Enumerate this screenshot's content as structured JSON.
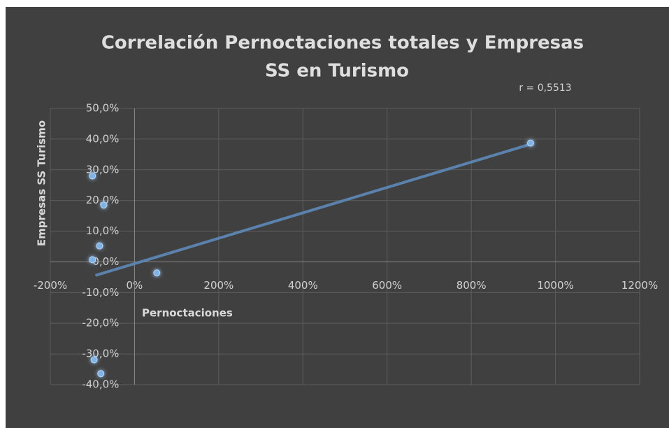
{
  "chart_data": {
    "type": "scatter",
    "title": [
      "Correlación Pernoctaciones totales y Empresas",
      "SS en Turismo"
    ],
    "annotation": "r = 0,5513",
    "x_label": "Pernoctaciones",
    "y_label": "Empresas SS Turismo",
    "series": [
      {
        "name": "Empresas SS Turismo",
        "color": "#7fb2e5",
        "x": [
          -100,
          -73,
          -83,
          -100,
          53,
          941,
          -96,
          -80
        ],
        "values": [
          28,
          18.5,
          5.2,
          0.7,
          -3.6,
          38.7,
          -31.9,
          -36.4
        ]
      }
    ],
    "trendline": {
      "color": "#5a82ad",
      "x": [
        -90,
        940
      ],
      "values": [
        -4.3,
        38.3
      ]
    },
    "xlim": [
      -200,
      1200
    ],
    "xticks": [
      {
        "value": -200,
        "label": "-200%"
      },
      {
        "value": 0,
        "label": "0%"
      },
      {
        "value": 200,
        "label": "200%"
      },
      {
        "value": 400,
        "label": "400%"
      },
      {
        "value": 600,
        "label": "600%"
      },
      {
        "value": 800,
        "label": "800%"
      },
      {
        "value": 1000,
        "label": "1000%"
      },
      {
        "value": 1200,
        "label": "1200%"
      }
    ],
    "ylim": [
      -40,
      50
    ],
    "yticks": [
      {
        "value": -40,
        "label": "-40,0%"
      },
      {
        "value": -30,
        "label": "-30,0%"
      },
      {
        "value": -20,
        "label": "-20,0%"
      },
      {
        "value": -10,
        "label": "-10,0%"
      },
      {
        "value": 0,
        "label": "0,0%"
      },
      {
        "value": 10,
        "label": "10,0%"
      },
      {
        "value": 20,
        "label": "20,0%"
      },
      {
        "value": 30,
        "label": "30,0%"
      },
      {
        "value": 40,
        "label": "40,0%"
      },
      {
        "value": 50,
        "label": "50,0%"
      }
    ],
    "grid": true
  }
}
